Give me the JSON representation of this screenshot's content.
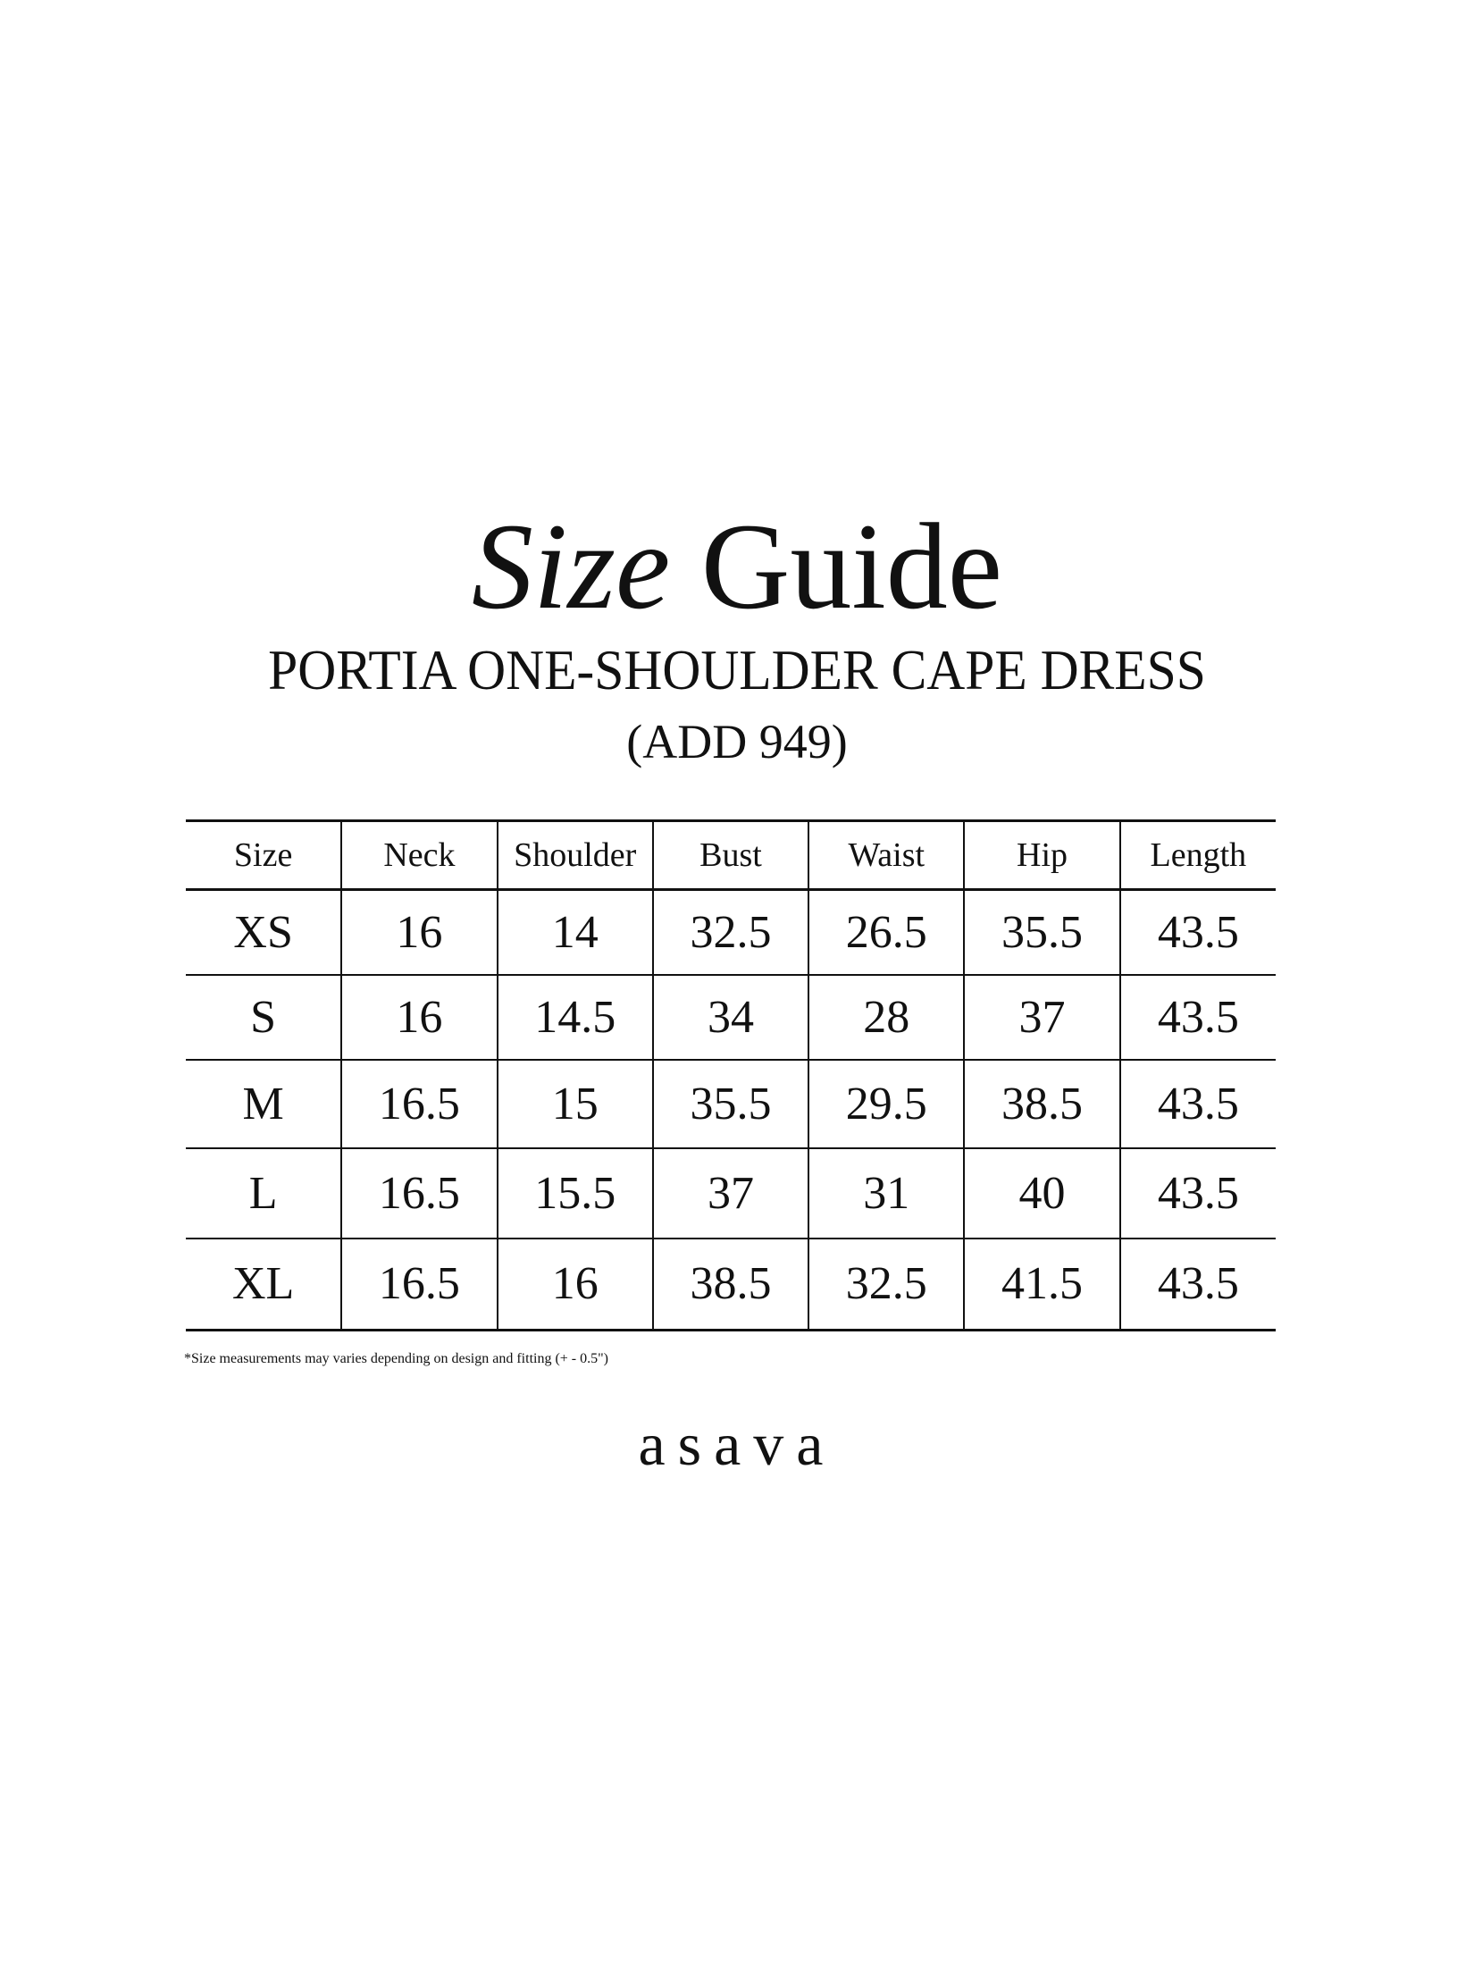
{
  "title": {
    "italic": "Size",
    "regular": "Guide"
  },
  "subtitle": "PORTIA ONE-SHOULDER CAPE DRESS",
  "product_code": "(ADD 949)",
  "table": {
    "headers": [
      "Size",
      "Neck",
      "Shoulder",
      "Bust",
      "Waist",
      "Hip",
      "Length"
    ],
    "rows": [
      [
        "XS",
        "16",
        "14",
        "32.5",
        "26.5",
        "35.5",
        "43.5"
      ],
      [
        "S",
        "16",
        "14.5",
        "34",
        "28",
        "37",
        "43.5"
      ],
      [
        "M",
        "16.5",
        "15",
        "35.5",
        "29.5",
        "38.5",
        "43.5"
      ],
      [
        "L",
        "16.5",
        "15.5",
        "37",
        "31",
        "40",
        "43.5"
      ],
      [
        "XL",
        "16.5",
        "16",
        "38.5",
        "32.5",
        "41.5",
        "43.5"
      ]
    ]
  },
  "footnote": "*Size measurements may varies depending on design and fitting (+ - 0.5\")",
  "brand": "asava"
}
